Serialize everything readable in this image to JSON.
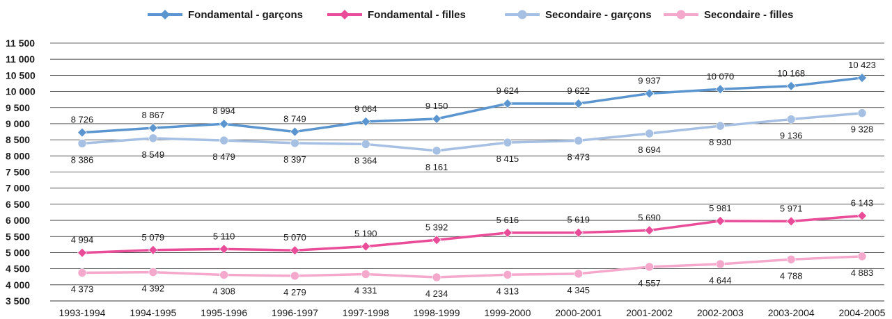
{
  "chart_data": {
    "type": "line",
    "categories": [
      "1993-1994",
      "1994-1995",
      "1995-1996",
      "1996-1997",
      "1997-1998",
      "1998-1999",
      "1999-2000",
      "2000-2001",
      "2001-2002",
      "2002-2003",
      "2003-2004",
      "2004-2005"
    ],
    "ylim": [
      3500,
      11500
    ],
    "yticks": [
      3500,
      4000,
      4500,
      5000,
      5500,
      6000,
      6500,
      7000,
      7500,
      8000,
      8500,
      9000,
      9500,
      10000,
      10500,
      11000,
      11500
    ],
    "ytick_labels": [
      "3 500",
      "4 000",
      "4 500",
      "5 000",
      "5 500",
      "6 000",
      "6 500",
      "7 000",
      "7 500",
      "8 000",
      "8 500",
      "9 000",
      "9 500",
      "10 000",
      "10 500",
      "11 000",
      "11 500"
    ],
    "grid": true,
    "legend_position": "top",
    "series": [
      {
        "name": "Fondamental - garçons",
        "color": "#5b95cf",
        "values": [
          8726,
          8867,
          8994,
          8749,
          9064,
          9150,
          9624,
          9622,
          9937,
          10070,
          10168,
          10423
        ],
        "labels": [
          "8 726",
          "8 867",
          "8 994",
          "8 749",
          "9 064",
          "9 150",
          "9 624",
          "9 622",
          "9 937",
          "10 070",
          "10 168",
          "10 423"
        ],
        "label_side": "above"
      },
      {
        "name": "Fondamental - filles",
        "color": "#e94c98",
        "values": [
          4994,
          5079,
          5110,
          5070,
          5190,
          5392,
          5616,
          5619,
          5690,
          5981,
          5971,
          6143
        ],
        "labels": [
          "4 994",
          "5 079",
          "5 110",
          "5 070",
          "5 190",
          "5 392",
          "5 616",
          "5 619",
          "5 690",
          "5 981",
          "5 971",
          "6 143"
        ],
        "label_side": "above"
      },
      {
        "name": "Secondaire - garçons",
        "color": "#a6c0e3",
        "values": [
          8386,
          8549,
          8479,
          8397,
          8364,
          8161,
          8415,
          8473,
          8694,
          8930,
          9136,
          9328
        ],
        "labels": [
          "8 386",
          "8 549",
          "8 479",
          "8 397",
          "8 364",
          "8 161",
          "8 415",
          "8 473",
          "8 694",
          "8 930",
          "9 136",
          "9 328"
        ],
        "label_side": "below"
      },
      {
        "name": "Secondaire - filles",
        "color": "#f4a9cc",
        "values": [
          4373,
          4392,
          4308,
          4279,
          4331,
          4234,
          4313,
          4345,
          4557,
          4644,
          4788,
          4883
        ],
        "labels": [
          "4 373",
          "4 392",
          "4 308",
          "4 279",
          "4 331",
          "4 234",
          "4 313",
          "4 345",
          "4 557",
          "4 644",
          "4 788",
          "4 883"
        ],
        "label_side": "below"
      }
    ]
  }
}
